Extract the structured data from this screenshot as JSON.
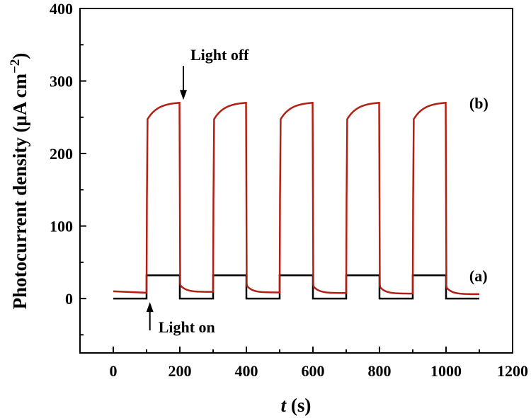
{
  "chart_data": {
    "type": "line",
    "xlabel": {
      "italic": "t",
      "rest": " (s)"
    },
    "ylabel": {
      "main": "Photocurrent density (μA cm",
      "sup": "−2",
      "close": ")"
    },
    "xlim": [
      -100,
      1200
    ],
    "ylim": [
      -75,
      400
    ],
    "xticks": [
      0,
      200,
      400,
      600,
      800,
      1000,
      1200
    ],
    "yticks": [
      0,
      100,
      200,
      300,
      400
    ],
    "grid": false,
    "light_on_times": [
      100,
      300,
      500,
      700,
      900
    ],
    "light_off_times": [
      200,
      400,
      600,
      800,
      1000
    ],
    "time_range": [
      0,
      1100
    ],
    "series": [
      {
        "name": "(a)",
        "color": "#000000",
        "dark_value": 0,
        "light_value": 32
      },
      {
        "name": "(b)",
        "color": "#b22014",
        "dark_value_start": 10,
        "dark_value_end": 6,
        "light_value_initial": 245,
        "light_value_final": 270
      }
    ],
    "annotations": [
      {
        "text": "Light off",
        "arrow_x": 200,
        "arrow_y": 272
      },
      {
        "text": "Light on",
        "arrow_x": 110,
        "arrow_y": -3
      }
    ]
  }
}
